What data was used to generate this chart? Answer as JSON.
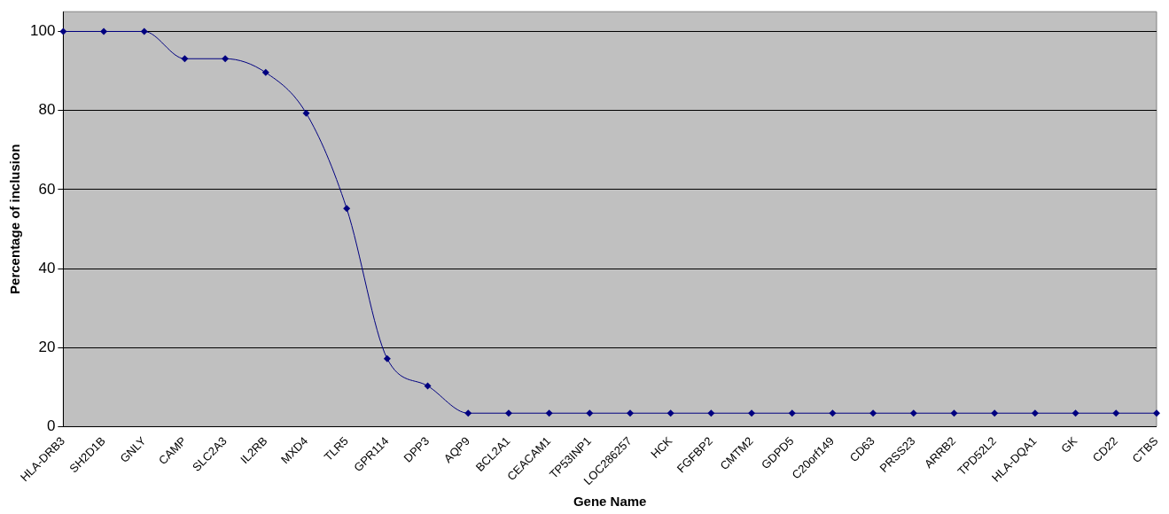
{
  "chart_data": {
    "type": "line",
    "xlabel": "Gene Name",
    "ylabel": "Percentage of inclusion",
    "categories": [
      "HLA-DRB3",
      "SH2D1B",
      "GNLY",
      "CAMP",
      "SLC2A3",
      "IL2RB",
      "MXD4",
      "TLR5",
      "GPR114",
      "DPP3",
      "AQP9",
      "BCL2A1",
      "CEACAM1",
      "TP53INP1",
      "LOC286257",
      "HCK",
      "FGFBP2",
      "CMTM2",
      "GDPD5",
      "C20orf149",
      "CD63",
      "PRSS23",
      "ARRB2",
      "TPD52L2",
      "HLA-DQA1",
      "GK",
      "CD22",
      "CTBS"
    ],
    "series": [
      {
        "color": "#000080",
        "values": [
          100,
          100,
          100,
          93.1,
          93.1,
          89.6,
          79.3,
          55.2,
          17.2,
          10.3,
          3.4,
          3.4,
          3.4,
          3.4,
          3.4,
          3.4,
          3.4,
          3.4,
          3.4,
          3.4,
          3.4,
          3.4,
          3.4,
          3.4,
          3.4,
          3.4,
          3.4,
          3.4
        ]
      }
    ],
    "ylim": [
      0,
      105
    ],
    "yticks": [
      0,
      20,
      40,
      60,
      80,
      100
    ],
    "grid": "y",
    "legend": false,
    "marker": "diamond",
    "line_style": "solid"
  }
}
